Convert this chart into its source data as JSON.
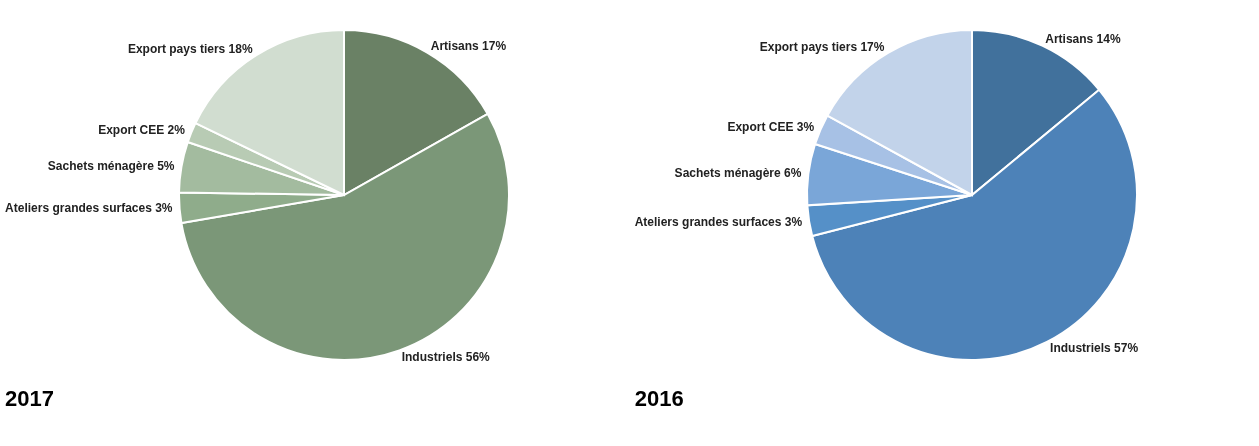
{
  "chart_data": [
    {
      "type": "pie",
      "title": "2017",
      "categories": [
        "Artisans",
        "Industriels",
        "Ateliers grandes surfaces",
        "Sachets ménagère",
        "Export CEE",
        "Export pays tiers"
      ],
      "values": [
        17,
        56,
        3,
        5,
        2,
        18
      ],
      "value_labels": [
        "17%",
        "56%",
        "3%",
        "5%",
        "2%",
        "18%"
      ],
      "colors": [
        "#6a8165",
        "#7b9778",
        "#8fac8b",
        "#a3bb9f",
        "#b8cbb4",
        "#d1ddd0"
      ]
    },
    {
      "type": "pie",
      "title": "2016",
      "categories": [
        "Artisans",
        "Industriels",
        "Ateliers grandes surfaces",
        "Sachets ménagère",
        "Export CEE",
        "Export pays tiers"
      ],
      "values": [
        14,
        57,
        3,
        6,
        3,
        17
      ],
      "value_labels": [
        "14%",
        "57%",
        "3%",
        "6%",
        "3%",
        "17%"
      ],
      "colors": [
        "#41719c",
        "#4d82b8",
        "#5590c8",
        "#7aa6d8",
        "#a7c1e5",
        "#c2d3ea"
      ]
    }
  ]
}
